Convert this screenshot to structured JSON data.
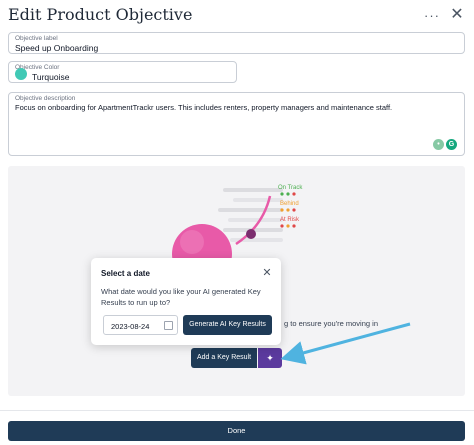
{
  "dialog": {
    "title": "Edit Product Objective",
    "more_icon": "more-horizontal-icon",
    "close_icon": "close-icon"
  },
  "objective_label": {
    "label": "Objective label",
    "value": "Speed up Onboarding"
  },
  "objective_color": {
    "label": "Objective Color",
    "value": "Turquoise",
    "swatch_color": "#40c9b5"
  },
  "objective_description": {
    "label": "Objective description",
    "value": "Focus on onboarding for ApartmentTrackr users. This includes renters, property managers and maintenance staff."
  },
  "illustration": {
    "legend": [
      {
        "label": "On Track",
        "color": "#4caf50"
      },
      {
        "label": "Behind",
        "color": "#f0a030"
      },
      {
        "label": "At Risk",
        "color": "#e04848"
      }
    ],
    "bubble_color": "#e85aa8"
  },
  "panel": {
    "partial_text": "g to ensure you're moving in",
    "add_key_result_label": "Add a Key Result",
    "ai_icon": "sparkle-icon",
    "ai_color": "#5b3a9e"
  },
  "date_popup": {
    "title": "Select a date",
    "text": "What date would you like your AI generated Key Results to run up to?",
    "date_value": "2023-08-24",
    "generate_label": "Generate AI Key Results"
  },
  "footer": {
    "done_label": "Done",
    "primary_color": "#1f3b57"
  }
}
